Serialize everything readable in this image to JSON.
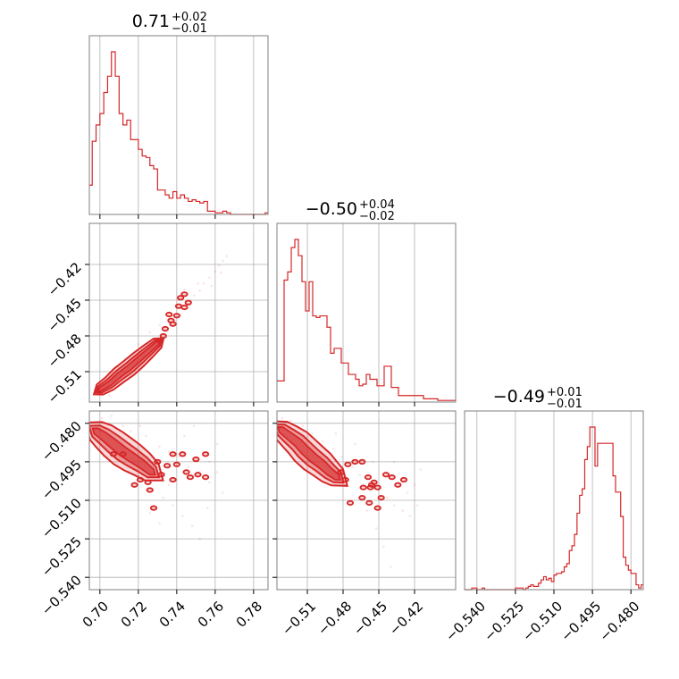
{
  "chart_data": {
    "type": "corner",
    "color": "#d62728",
    "grid": true,
    "titles": [
      {
        "value": "0.71",
        "plus": "+0.02",
        "minus": "−0.01"
      },
      {
        "value": "−0.50",
        "plus": "+0.04",
        "minus": "−0.02"
      },
      {
        "value": "−0.49",
        "plus": "+0.01",
        "minus": "−0.01"
      }
    ],
    "params": [
      {
        "range": [
          0.6945,
          0.7875
        ],
        "ticks": [
          0.7,
          0.72,
          0.74,
          0.76,
          0.78
        ],
        "tick_labels": [
          "0.70",
          "0.72",
          "0.74",
          "0.76",
          "0.78"
        ]
      },
      {
        "range": [
          -0.5355,
          -0.3855
        ],
        "ticks": [
          -0.51,
          -0.48,
          -0.45,
          -0.42
        ],
        "tick_labels": [
          "−0.51",
          "−0.48",
          "−0.45",
          "−0.42"
        ]
      },
      {
        "range": [
          -0.5448,
          -0.4752
        ],
        "ticks": [
          -0.54,
          -0.525,
          -0.51,
          -0.495,
          -0.48
        ],
        "tick_labels": [
          "−0.540",
          "−0.525",
          "−0.510",
          "−0.495",
          "−0.480"
        ]
      }
    ],
    "histograms": [
      {
        "x": [
          0.695,
          0.697,
          0.699,
          0.701,
          0.703,
          0.705,
          0.707,
          0.709,
          0.711,
          0.713,
          0.715,
          0.717,
          0.719,
          0.721,
          0.723,
          0.725,
          0.727,
          0.729,
          0.731,
          0.733,
          0.735,
          0.737,
          0.739,
          0.741,
          0.743,
          0.745,
          0.747,
          0.749,
          0.751,
          0.753,
          0.755,
          0.757,
          0.759,
          0.761,
          0.763,
          0.765,
          0.767,
          0.769,
          0.771,
          0.773,
          0.775,
          0.777,
          0.779,
          0.781,
          0.783,
          0.785,
          0.787
        ],
        "counts": [
          18,
          45,
          55,
          62,
          75,
          85,
          100,
          85,
          62,
          55,
          58,
          46,
          46,
          40,
          36,
          35,
          30,
          28,
          15,
          15,
          12,
          10,
          14,
          10,
          12,
          10,
          8,
          9,
          8,
          7,
          8,
          2,
          2,
          1,
          1,
          2,
          1,
          0,
          0,
          0,
          0,
          0,
          0,
          0,
          0,
          0,
          1
        ]
      },
      {
        "x": [
          -0.534,
          -0.531,
          -0.528,
          -0.525,
          -0.522,
          -0.519,
          -0.516,
          -0.513,
          -0.51,
          -0.507,
          -0.504,
          -0.501,
          -0.498,
          -0.495,
          -0.492,
          -0.489,
          -0.486,
          -0.483,
          -0.48,
          -0.477,
          -0.474,
          -0.471,
          -0.468,
          -0.465,
          -0.462,
          -0.459,
          -0.456,
          -0.453,
          -0.45,
          -0.447,
          -0.444,
          -0.441,
          -0.438,
          -0.435,
          -0.432,
          -0.429,
          -0.426,
          -0.423,
          -0.42,
          -0.417,
          -0.414,
          -0.411,
          -0.408,
          -0.405,
          -0.402,
          -0.399,
          -0.396,
          -0.393,
          -0.39,
          -0.387
        ],
        "counts": [
          13,
          13,
          75,
          80,
          95,
          100,
          90,
          74,
          56,
          74,
          53,
          52,
          53,
          53,
          46,
          30,
          33,
          33,
          24,
          24,
          17,
          17,
          14,
          10,
          11,
          17,
          14,
          14,
          10,
          10,
          22,
          22,
          9,
          9,
          4,
          4,
          4,
          4,
          4,
          4,
          4,
          2,
          2,
          2,
          2,
          1,
          1,
          1,
          1,
          1
        ]
      },
      {
        "x": [
          -0.5445,
          -0.5435,
          -0.5425,
          -0.5415,
          -0.5405,
          -0.5395,
          -0.5385,
          -0.5375,
          -0.5365,
          -0.5355,
          -0.5345,
          -0.5335,
          -0.5325,
          -0.5315,
          -0.5305,
          -0.5295,
          -0.5285,
          -0.5275,
          -0.5265,
          -0.5255,
          -0.5245,
          -0.5235,
          -0.5225,
          -0.5215,
          -0.5205,
          -0.5195,
          -0.5185,
          -0.5175,
          -0.5165,
          -0.5155,
          -0.5145,
          -0.5135,
          -0.5125,
          -0.5115,
          -0.5105,
          -0.5095,
          -0.5085,
          -0.5075,
          -0.5065,
          -0.5055,
          -0.5045,
          -0.5035,
          -0.5025,
          -0.5015,
          -0.5005,
          -0.4995,
          -0.4985,
          -0.4975,
          -0.4965,
          -0.4955,
          -0.4945,
          -0.4935,
          -0.4925,
          -0.4915,
          -0.4905,
          -0.4895,
          -0.4885,
          -0.4875,
          -0.4865,
          -0.4855,
          -0.4845,
          -0.4835,
          -0.4825,
          -0.4815,
          -0.4805,
          -0.4795,
          -0.4785,
          -0.4775,
          -0.4765,
          -0.4755
        ],
        "counts": [
          0,
          0,
          0,
          1,
          1,
          0,
          0,
          1,
          0,
          0,
          0,
          0,
          0,
          0,
          0,
          0,
          0,
          0,
          0,
          0,
          1,
          1,
          1,
          0,
          1,
          2,
          3,
          2,
          2,
          4,
          6,
          8,
          6,
          7,
          5,
          9,
          10,
          10,
          11,
          14,
          16,
          24,
          27,
          34,
          47,
          58,
          62,
          80,
          88,
          100,
          100,
          76,
          90,
          90,
          90,
          90,
          90,
          90,
          70,
          60,
          60,
          45,
          20,
          15,
          12,
          10,
          10,
          3,
          1,
          3
        ]
      }
    ],
    "pairs": [
      {
        "x_param": 0,
        "y_param": 1,
        "axis": [
          -0.5355,
          -0.3855
        ],
        "ridge": [
          [
            0.7,
            -0.525
          ],
          [
            0.705,
            -0.52
          ],
          [
            0.71,
            -0.513
          ],
          [
            0.715,
            -0.507
          ],
          [
            0.72,
            -0.5
          ],
          [
            0.725,
            -0.493
          ],
          [
            0.73,
            -0.486
          ]
        ],
        "width": 0.0045,
        "outliers": [
          [
            0.734,
            -0.474
          ],
          [
            0.737,
            -0.467
          ],
          [
            0.741,
            -0.455
          ],
          [
            0.744,
            -0.445
          ],
          [
            0.744,
            -0.456
          ],
          [
            0.742,
            -0.448
          ],
          [
            0.736,
            -0.462
          ],
          [
            0.738,
            -0.47
          ],
          [
            0.74,
            -0.463
          ],
          [
            0.746,
            -0.452
          ],
          [
            0.733,
            -0.48
          ],
          [
            0.731,
            -0.484
          ]
        ],
        "scatter": [
          [
            0.702,
            -0.525
          ],
          [
            0.708,
            -0.515
          ],
          [
            0.712,
            -0.51
          ],
          [
            0.719,
            -0.502
          ],
          [
            0.723,
            -0.497
          ],
          [
            0.728,
            -0.489
          ],
          [
            0.733,
            -0.481
          ],
          [
            0.737,
            -0.471
          ],
          [
            0.739,
            -0.467
          ],
          [
            0.742,
            -0.462
          ],
          [
            0.745,
            -0.455
          ],
          [
            0.747,
            -0.45
          ],
          [
            0.749,
            -0.446
          ],
          [
            0.752,
            -0.442
          ],
          [
            0.754,
            -0.436
          ],
          [
            0.757,
            -0.431
          ],
          [
            0.76,
            -0.426
          ],
          [
            0.762,
            -0.421
          ],
          [
            0.764,
            -0.417
          ],
          [
            0.766,
            -0.413
          ],
          [
            0.726,
            -0.477
          ],
          [
            0.731,
            -0.471
          ],
          [
            0.741,
            -0.449
          ],
          [
            0.744,
            -0.441
          ],
          [
            0.751,
            -0.436
          ],
          [
            0.758,
            -0.438
          ],
          [
            0.763,
            -0.427
          ],
          [
            0.705,
            -0.53
          ],
          [
            0.715,
            -0.498
          ],
          [
            0.72,
            -0.487
          ]
        ]
      },
      {
        "x_param": 0,
        "y_param": 2,
        "axis": [
          -0.5448,
          -0.4752
        ],
        "ridge": [
          [
            0.698,
            -0.483
          ],
          [
            0.702,
            -0.485
          ],
          [
            0.707,
            -0.488
          ],
          [
            0.712,
            -0.491
          ],
          [
            0.717,
            -0.4935
          ],
          [
            0.722,
            -0.496
          ],
          [
            0.727,
            -0.499
          ]
        ],
        "width": 0.0038,
        "outliers": [
          [
            0.73,
            -0.495
          ],
          [
            0.732,
            -0.5
          ],
          [
            0.735,
            -0.4965
          ],
          [
            0.738,
            -0.492
          ],
          [
            0.74,
            -0.496
          ],
          [
            0.743,
            -0.492
          ],
          [
            0.745,
            -0.499
          ],
          [
            0.747,
            -0.501
          ],
          [
            0.75,
            -0.494
          ],
          [
            0.751,
            -0.5
          ],
          [
            0.755,
            -0.492
          ],
          [
            0.755,
            -0.501
          ],
          [
            0.726,
            -0.506
          ],
          [
            0.721,
            -0.502
          ],
          [
            0.725,
            -0.503
          ],
          [
            0.718,
            -0.504
          ],
          [
            0.728,
            -0.513
          ],
          [
            0.738,
            -0.502
          ],
          [
            0.712,
            -0.492
          ],
          [
            0.707,
            -0.492
          ]
        ],
        "scatter": [
          [
            0.701,
            -0.478
          ],
          [
            0.706,
            -0.477
          ],
          [
            0.712,
            -0.481
          ],
          [
            0.716,
            -0.483
          ],
          [
            0.724,
            -0.485
          ],
          [
            0.731,
            -0.489
          ],
          [
            0.736,
            -0.491
          ],
          [
            0.741,
            -0.493
          ],
          [
            0.746,
            -0.497
          ],
          [
            0.752,
            -0.499
          ],
          [
            0.757,
            -0.503
          ],
          [
            0.761,
            -0.488
          ],
          [
            0.764,
            -0.507
          ],
          [
            0.733,
            -0.509
          ],
          [
            0.738,
            -0.512
          ],
          [
            0.743,
            -0.516
          ],
          [
            0.748,
            -0.52
          ],
          [
            0.752,
            -0.525
          ],
          [
            0.731,
            -0.519
          ],
          [
            0.726,
            -0.515
          ],
          [
            0.757,
            -0.495
          ],
          [
            0.744,
            -0.485
          ],
          [
            0.721,
            -0.481
          ],
          [
            0.756,
            -0.513
          ],
          [
            0.736,
            -0.504
          ],
          [
            0.715,
            -0.499
          ],
          [
            0.749,
            -0.481
          ],
          [
            0.761,
            -0.499
          ]
        ]
      },
      {
        "x_param": 1,
        "y_param": 2,
        "axis": [
          -0.5448,
          -0.4752
        ],
        "ridge": [
          [
            -0.532,
            -0.4825
          ],
          [
            -0.525,
            -0.485
          ],
          [
            -0.518,
            -0.4875
          ],
          [
            -0.512,
            -0.4905
          ],
          [
            -0.505,
            -0.4935
          ],
          [
            -0.498,
            -0.496
          ],
          [
            -0.491,
            -0.499
          ],
          [
            -0.485,
            -0.501
          ]
        ],
        "width": 0.0036,
        "outliers": [
          [
            -0.482,
            -0.499
          ],
          [
            -0.478,
            -0.502
          ],
          [
            -0.476,
            -0.496
          ],
          [
            -0.47,
            -0.495
          ],
          [
            -0.464,
            -0.495
          ],
          [
            -0.459,
            -0.501
          ],
          [
            -0.457,
            -0.505
          ],
          [
            -0.454,
            -0.503
          ],
          [
            -0.451,
            -0.505
          ],
          [
            -0.444,
            -0.5
          ],
          [
            -0.439,
            -0.501
          ],
          [
            -0.434,
            -0.504
          ],
          [
            -0.448,
            -0.509
          ],
          [
            -0.458,
            -0.511
          ],
          [
            -0.464,
            -0.509
          ],
          [
            -0.474,
            -0.511
          ],
          [
            -0.451,
            -0.513
          ],
          [
            -0.456,
            -0.504
          ],
          [
            -0.463,
            -0.505
          ],
          [
            -0.429,
            -0.502
          ]
        ],
        "scatter": [
          [
            -0.531,
            -0.478
          ],
          [
            -0.524,
            -0.479
          ],
          [
            -0.514,
            -0.481
          ],
          [
            -0.506,
            -0.484
          ],
          [
            -0.497,
            -0.487
          ],
          [
            -0.488,
            -0.49
          ],
          [
            -0.481,
            -0.493
          ],
          [
            -0.472,
            -0.497
          ],
          [
            -0.466,
            -0.5
          ],
          [
            -0.458,
            -0.503
          ],
          [
            -0.45,
            -0.506
          ],
          [
            -0.443,
            -0.509
          ],
          [
            -0.437,
            -0.512
          ],
          [
            -0.43,
            -0.514
          ],
          [
            -0.424,
            -0.516
          ],
          [
            -0.42,
            -0.504
          ],
          [
            -0.415,
            -0.498
          ],
          [
            -0.452,
            -0.521
          ],
          [
            -0.446,
            -0.528
          ],
          [
            -0.44,
            -0.536
          ],
          [
            -0.486,
            -0.484
          ],
          [
            -0.47,
            -0.488
          ],
          [
            -0.455,
            -0.495
          ],
          [
            -0.437,
            -0.495
          ],
          [
            -0.426,
            -0.507
          ],
          [
            -0.46,
            -0.514
          ],
          [
            -0.478,
            -0.504
          ],
          [
            -0.418,
            -0.512
          ]
        ]
      }
    ]
  }
}
